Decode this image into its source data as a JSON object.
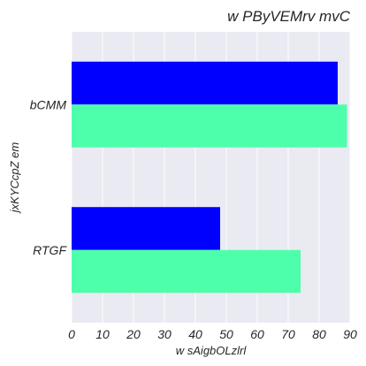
{
  "chart_data": {
    "type": "bar",
    "orientation": "horizontal",
    "title": "w PByVEMrv mvC",
    "xlabel": "w sAigbOLzlrl",
    "ylabel": "jxKYCcpZ em",
    "categories": [
      "bCMM",
      "RTGF"
    ],
    "series": [
      {
        "values": [
          86,
          48
        ],
        "color": "#0000ff"
      },
      {
        "values": [
          89,
          74
        ],
        "color": "#4dffaa"
      }
    ],
    "xlim": [
      0,
      90
    ],
    "xticks": [
      0,
      10,
      20,
      30,
      40,
      50,
      60,
      70,
      80,
      90
    ],
    "grid": true,
    "legend": false,
    "background_color": "#eaeaf2",
    "grid_color": "#ffffff"
  }
}
